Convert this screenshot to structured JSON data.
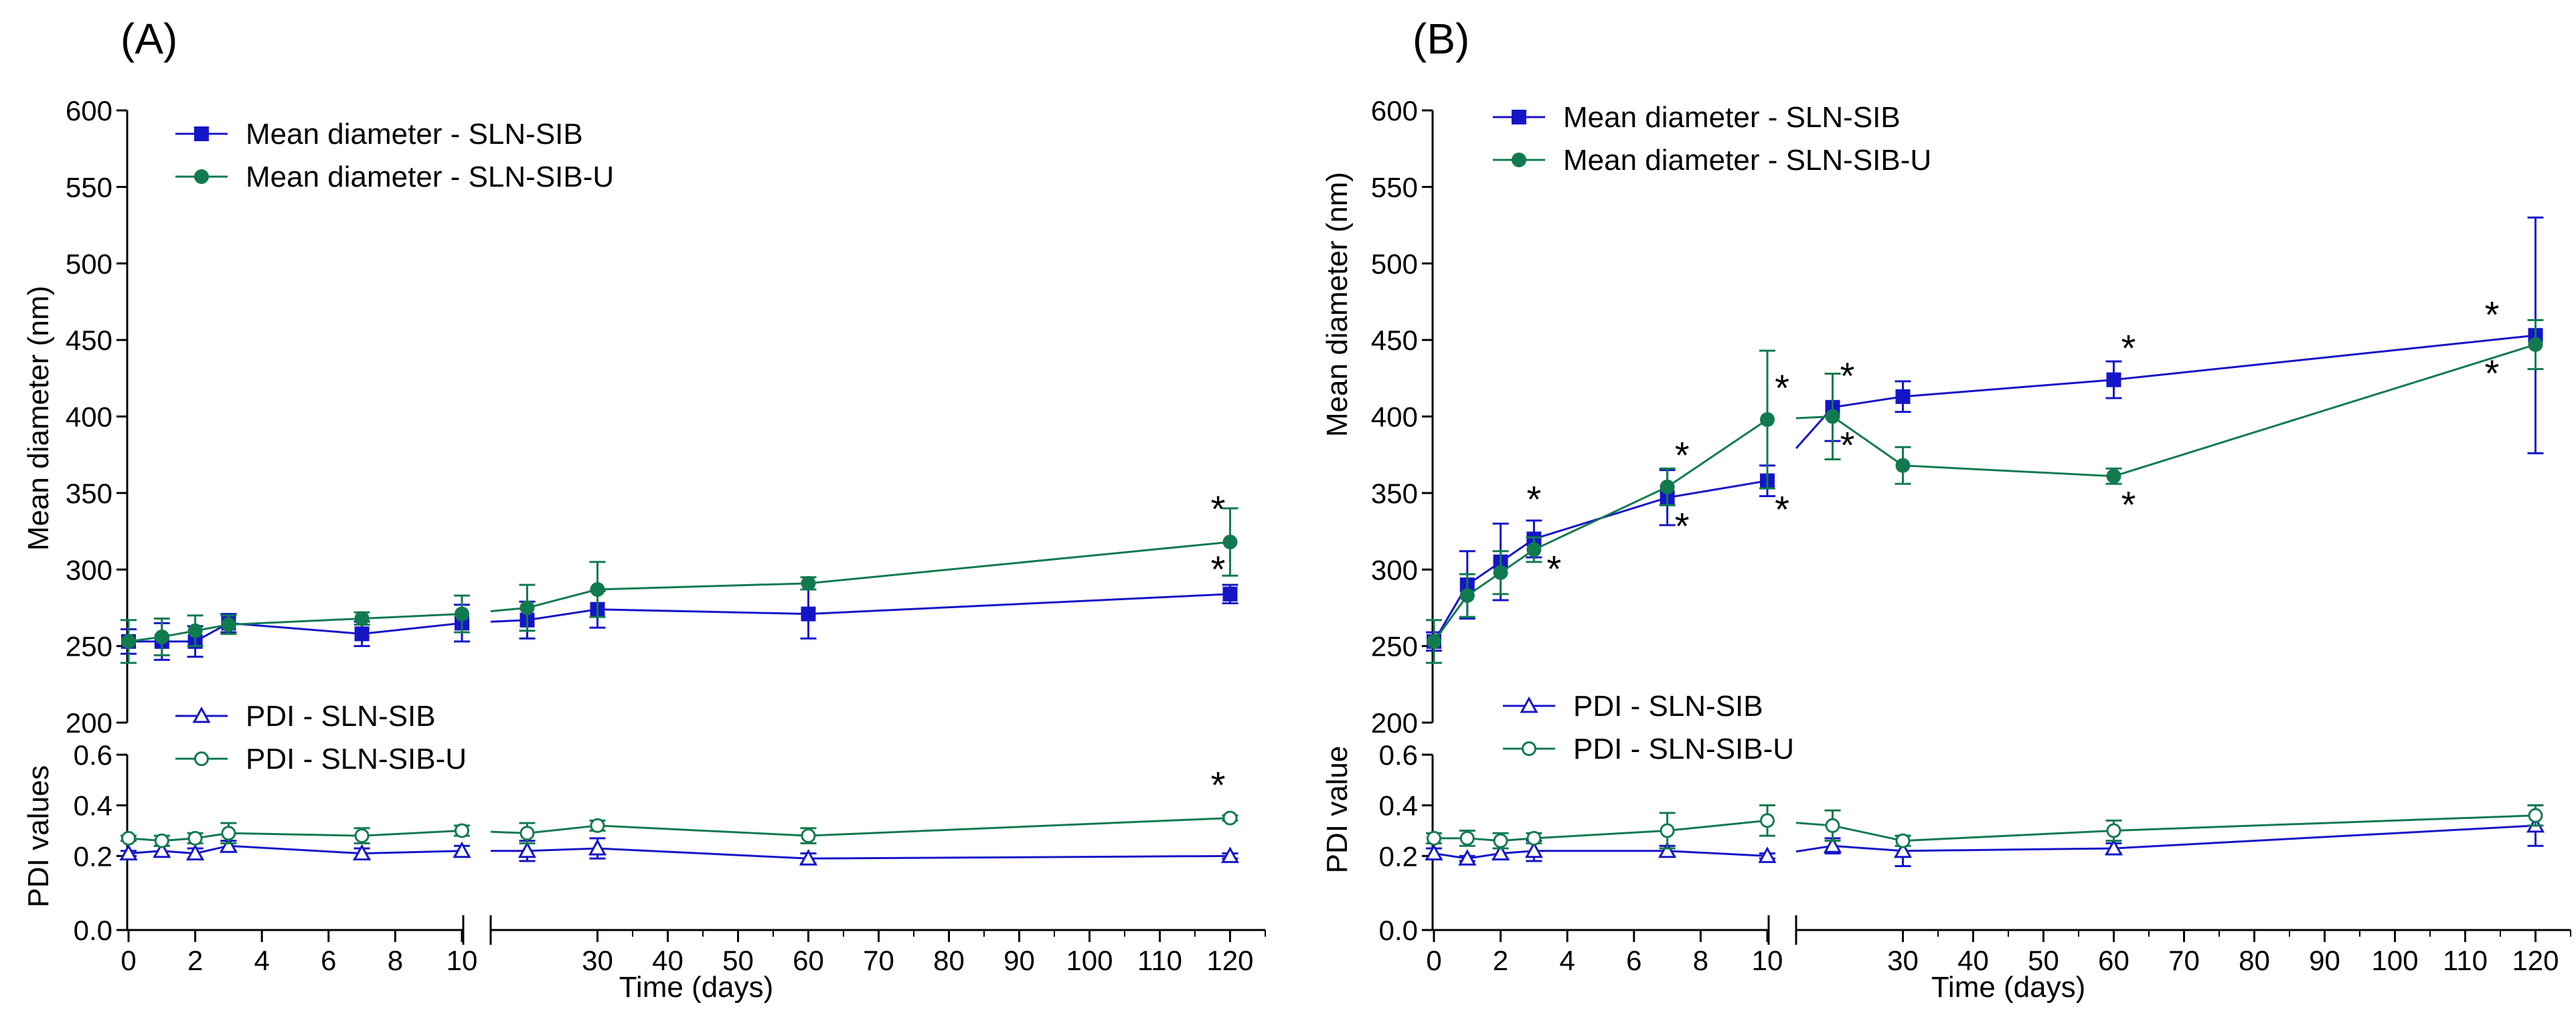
{
  "colors": {
    "sib": "#1515c8",
    "sibu": "#127a4f",
    "axis": "#000000"
  },
  "axis_labels": {
    "mean": "Mean diameter (nm)",
    "pdi_a": "PDI values",
    "pdi_b": "PDI value",
    "x": "Time (days)"
  },
  "ticks": {
    "mean": [
      "600",
      "550",
      "500",
      "450",
      "400",
      "350",
      "300",
      "250",
      "200"
    ],
    "pdi": [
      "0.6",
      "0.4",
      "0.2",
      "0.0"
    ],
    "x_left": [
      "0",
      "2",
      "4",
      "6",
      "8",
      "10"
    ],
    "x_right": [
      "30",
      "40",
      "50",
      "60",
      "70",
      "80",
      "90",
      "100",
      "110",
      "120"
    ]
  },
  "chart_data": [
    {
      "type": "line",
      "panel_label": "(A)",
      "xlabel": "Time (days)",
      "x_axis_break": {
        "left_range": [
          0,
          10
        ],
        "right_range": [
          15,
          125
        ]
      },
      "mean_diameter": {
        "ylabel": "Mean diameter (nm)",
        "ylim": [
          200,
          600
        ],
        "legend": [
          "Mean diameter - SLN-SIB",
          "Mean diameter - SLN-SIB-U"
        ],
        "series": [
          {
            "name": "Mean diameter - SLN-SIB",
            "marker": "filled-square",
            "color": "#1515c8",
            "x": [
              0,
              1,
              2,
              3,
              7,
              10,
              20,
              30,
              60,
              120
            ],
            "y": [
              253,
              253,
              253,
              265,
              258,
              265,
              267,
              274,
              271,
              284
            ],
            "err": [
              8,
              12,
              10,
              6,
              8,
              12,
              12,
              12,
              16,
              6
            ],
            "annotations": [
              "",
              "",
              "",
              "",
              "",
              "",
              "",
              "",
              "",
              "*"
            ]
          },
          {
            "name": "Mean diameter - SLN-SIB-U",
            "marker": "filled-circle",
            "color": "#127a4f",
            "x": [
              0,
              1,
              2,
              3,
              7,
              10,
              20,
              30,
              60,
              120
            ],
            "y": [
              253,
              256,
              260,
              264,
              268,
              271,
              275,
              287,
              291,
              318
            ],
            "err": [
              14,
              12,
              10,
              6,
              4,
              12,
              15,
              18,
              4,
              22
            ],
            "annotations": [
              "",
              "",
              "",
              "",
              "",
              "",
              "",
              "",
              "",
              "*"
            ]
          }
        ]
      },
      "pdi": {
        "ylabel": "PDI values",
        "ylim": [
          0,
          0.6
        ],
        "legend": [
          "PDI - SLN-SIB",
          "PDI - SLN-SIB-U"
        ],
        "series": [
          {
            "name": "PDI - SLN-SIB",
            "marker": "open-triangle",
            "color": "#1515c8",
            "x": [
              0,
              1,
              2,
              3,
              7,
              10,
              20,
              30,
              60,
              120
            ],
            "y": [
              0.21,
              0.22,
              0.21,
              0.24,
              0.21,
              0.22,
              0.22,
              0.23,
              0.19,
              0.2
            ],
            "err": [
              0.01,
              0.02,
              0.02,
              0.02,
              0.02,
              0.02,
              0.04,
              0.04,
              0.02,
              0.01
            ],
            "annotations": [
              "",
              "",
              "",
              "",
              "",
              "",
              "",
              "",
              "",
              ""
            ]
          },
          {
            "name": "PDI - SLN-SIB-U",
            "marker": "open-circle",
            "color": "#127a4f",
            "x": [
              0,
              1,
              2,
              3,
              7,
              10,
              20,
              30,
              60,
              120
            ],
            "y": [
              0.27,
              0.26,
              0.27,
              0.29,
              0.28,
              0.3,
              0.29,
              0.32,
              0.28,
              0.35
            ],
            "err": [
              0.01,
              0.02,
              0.02,
              0.04,
              0.03,
              0.02,
              0.04,
              0.02,
              0.03,
              0.01
            ],
            "annotations": [
              "",
              "",
              "",
              "",
              "",
              "",
              "",
              "",
              "",
              "*"
            ]
          }
        ]
      }
    },
    {
      "type": "line",
      "panel_label": "(B)",
      "xlabel": "Time (days)",
      "x_axis_break": {
        "left_range": [
          0,
          10
        ],
        "right_range": [
          15,
          125
        ]
      },
      "mean_diameter": {
        "ylabel": "Mean diameter (nm)",
        "ylim": [
          200,
          600
        ],
        "legend": [
          "Mean diameter - SLN-SIB",
          "Mean diameter - SLN-SIB-U"
        ],
        "series": [
          {
            "name": "Mean diameter - SLN-SIB",
            "marker": "filled-square",
            "color": "#1515c8",
            "x": [
              0,
              1,
              2,
              3,
              7,
              10,
              20,
              30,
              60,
              120
            ],
            "y": [
              253,
              290,
              305,
              320,
              347,
              358,
              406,
              413,
              424,
              453
            ],
            "err": [
              6,
              22,
              25,
              12,
              18,
              10,
              22,
              10,
              12,
              77
            ],
            "annotations": [
              "",
              "",
              "",
              "*",
              "*",
              "*",
              "*",
              "",
              "*",
              "*"
            ]
          },
          {
            "name": "Mean diameter - SLN-SIB-U",
            "marker": "filled-circle",
            "color": "#127a4f",
            "x": [
              0,
              1,
              2,
              3,
              7,
              10,
              20,
              30,
              60,
              120
            ],
            "y": [
              253,
              283,
              298,
              313,
              354,
              398,
              400,
              368,
              361,
              447
            ],
            "err": [
              14,
              14,
              14,
              8,
              12,
              45,
              28,
              12,
              5,
              16
            ],
            "annotations": [
              "",
              "",
              "",
              "*",
              "*",
              "*",
              "*",
              "",
              "*",
              "*"
            ]
          }
        ]
      },
      "pdi": {
        "ylabel": "PDI value",
        "ylim": [
          0,
          0.6
        ],
        "legend": [
          "PDI - SLN-SIB",
          "PDI - SLN-SIB-U"
        ],
        "series": [
          {
            "name": "PDI - SLN-SIB",
            "marker": "open-triangle",
            "color": "#1515c8",
            "x": [
              0,
              1,
              2,
              3,
              7,
              10,
              20,
              30,
              60,
              120
            ],
            "y": [
              0.21,
              0.19,
              0.21,
              0.22,
              0.22,
              0.2,
              0.24,
              0.22,
              0.23,
              0.32
            ],
            "err": [
              0.02,
              0.01,
              0.02,
              0.04,
              0.02,
              0.01,
              0.03,
              0.06,
              0.02,
              0.08
            ],
            "annotations": [
              "",
              "",
              "",
              "",
              "",
              "",
              "",
              "",
              "",
              ""
            ]
          },
          {
            "name": "PDI - SLN-SIB-U",
            "marker": "open-circle",
            "color": "#127a4f",
            "x": [
              0,
              1,
              2,
              3,
              7,
              10,
              20,
              30,
              60,
              120
            ],
            "y": [
              0.27,
              0.27,
              0.26,
              0.27,
              0.3,
              0.34,
              0.32,
              0.26,
              0.3,
              0.36
            ],
            "err": [
              0.02,
              0.03,
              0.03,
              0.02,
              0.07,
              0.06,
              0.06,
              0.02,
              0.04,
              0.04
            ],
            "annotations": [
              "",
              "",
              "",
              "",
              "",
              "",
              "",
              "",
              "",
              ""
            ]
          }
        ]
      }
    }
  ]
}
